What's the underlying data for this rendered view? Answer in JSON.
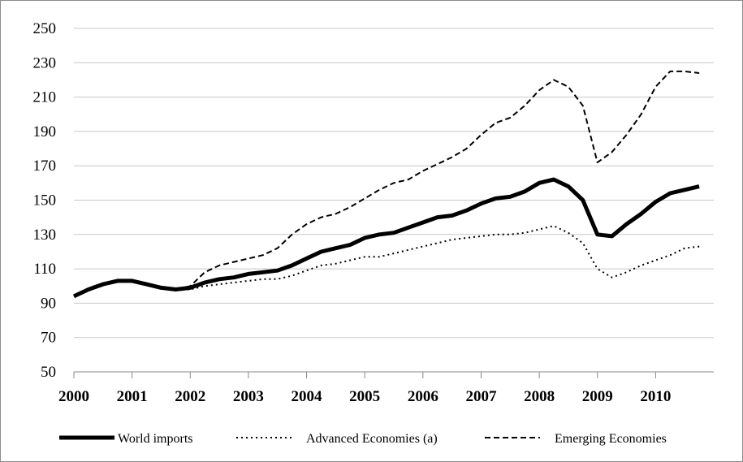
{
  "chart_data": {
    "type": "line",
    "x": [
      2000,
      2000.25,
      2000.5,
      2000.75,
      2001,
      2001.25,
      2001.5,
      2001.75,
      2002,
      2002.25,
      2002.5,
      2002.75,
      2003,
      2003.25,
      2003.5,
      2003.75,
      2004,
      2004.25,
      2004.5,
      2004.75,
      2005,
      2005.25,
      2005.5,
      2005.75,
      2006,
      2006.25,
      2006.5,
      2006.75,
      2007,
      2007.25,
      2007.5,
      2007.75,
      2008,
      2008.25,
      2008.5,
      2008.75,
      2009,
      2009.25,
      2009.5,
      2009.75,
      2010,
      2010.25,
      2010.5,
      2010.75
    ],
    "series": [
      {
        "name": "World imports",
        "color": "#000000",
        "style": "solid",
        "values": [
          94,
          98,
          101,
          103,
          103,
          101,
          99,
          98,
          99,
          102,
          104,
          105,
          107,
          108,
          109,
          112,
          116,
          120,
          122,
          124,
          128,
          130,
          131,
          134,
          137,
          140,
          141,
          144,
          148,
          151,
          152,
          155,
          160,
          162,
          158,
          150,
          130,
          129,
          136,
          142,
          149,
          154,
          156,
          158
        ]
      },
      {
        "name": "Advanced Economies (a)",
        "color": "#000000",
        "style": "dotted",
        "values": [
          94,
          98,
          101,
          103,
          103,
          101,
          99,
          98,
          98,
          100,
          101,
          102,
          103,
          104,
          104,
          106,
          109,
          112,
          113,
          115,
          117,
          117,
          119,
          121,
          123,
          125,
          127,
          128,
          129,
          130,
          130,
          131,
          133,
          135,
          131,
          125,
          110,
          105,
          108,
          112,
          115,
          118,
          122,
          123
        ]
      },
      {
        "name": "Emerging Economies",
        "color": "#000000",
        "style": "dashed",
        "values": [
          94,
          98,
          101,
          103,
          103,
          101,
          99,
          98,
          100,
          108,
          112,
          114,
          116,
          118,
          122,
          130,
          136,
          140,
          142,
          146,
          151,
          156,
          160,
          162,
          167,
          171,
          175,
          180,
          188,
          195,
          198,
          205,
          214,
          220,
          216,
          205,
          172,
          178,
          188,
          200,
          216,
          225,
          225,
          224
        ]
      }
    ],
    "xlim": [
      2000,
      2011
    ],
    "xticks": [
      2000,
      2001,
      2002,
      2003,
      2004,
      2005,
      2006,
      2007,
      2008,
      2009,
      2010
    ],
    "ylim": [
      50,
      250
    ],
    "yticks": [
      50,
      70,
      90,
      110,
      130,
      150,
      170,
      190,
      210,
      230,
      250
    ],
    "grid": true,
    "legend": "bottom"
  }
}
